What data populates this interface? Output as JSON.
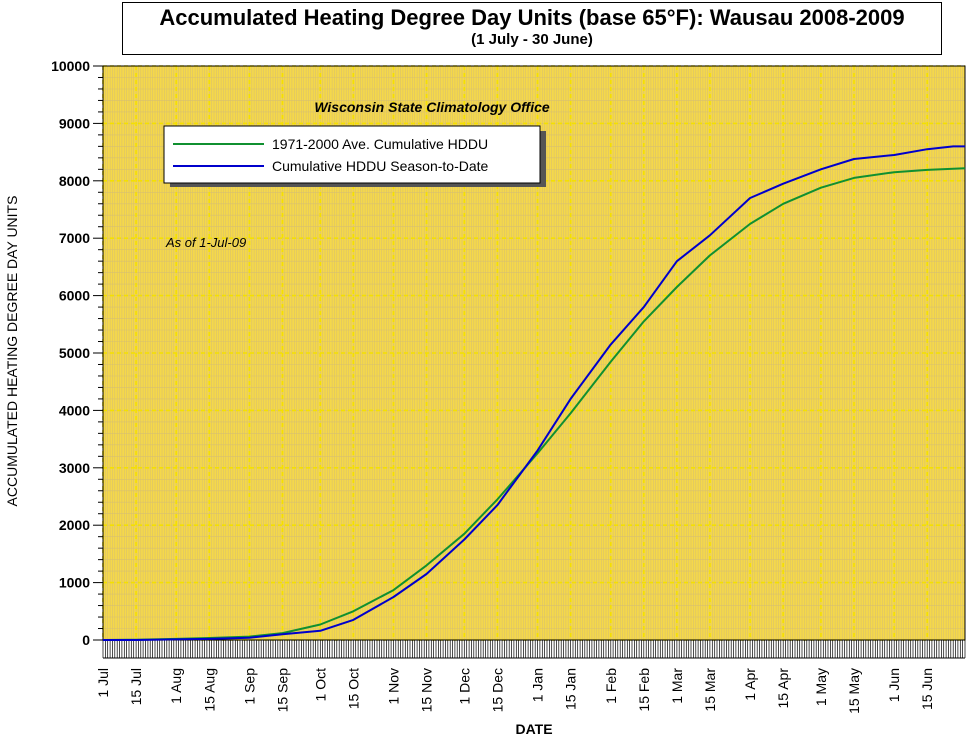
{
  "title": "Accumulated Heating Degree Day Units (base 65°F): Wausau 2008-2009",
  "subtitle": "(1 July - 30 June)",
  "annotation_office": "Wisconsin State Climatology Office",
  "annotation_asof": "As of 1-Jul-09",
  "chart_data": {
    "type": "line",
    "title": "Accumulated Heating Degree Day Units (base 65°F): Wausau 2008-2009",
    "subtitle": "(1 July - 30 June)",
    "xlabel": "DATE",
    "ylabel": "ACCUMULATED HEATING DEGREE DAY UNITS",
    "ylim": [
      0,
      10000
    ],
    "yticks": [
      0,
      1000,
      2000,
      3000,
      4000,
      5000,
      6000,
      7000,
      8000,
      9000,
      10000
    ],
    "xlim_days": [
      0,
      365
    ],
    "xticks": [
      {
        "label": "1 Jul",
        "day": 0
      },
      {
        "label": "15 Jul",
        "day": 14
      },
      {
        "label": "1 Aug",
        "day": 31
      },
      {
        "label": "15 Aug",
        "day": 45
      },
      {
        "label": "1 Sep",
        "day": 62
      },
      {
        "label": "15 Sep",
        "day": 76
      },
      {
        "label": "1 Oct",
        "day": 92
      },
      {
        "label": "15 Oct",
        "day": 106
      },
      {
        "label": "1 Nov",
        "day": 123
      },
      {
        "label": "15 Nov",
        "day": 137
      },
      {
        "label": "1 Dec",
        "day": 153
      },
      {
        "label": "15 Dec",
        "day": 167
      },
      {
        "label": "1 Jan",
        "day": 184
      },
      {
        "label": "15 Jan",
        "day": 198
      },
      {
        "label": "1 Feb",
        "day": 215
      },
      {
        "label": "15 Feb",
        "day": 229
      },
      {
        "label": "1 Mar",
        "day": 243
      },
      {
        "label": "15 Mar",
        "day": 257
      },
      {
        "label": "1 Apr",
        "day": 274
      },
      {
        "label": "15 Apr",
        "day": 288
      },
      {
        "label": "1 May",
        "day": 304
      },
      {
        "label": "15 May",
        "day": 318
      },
      {
        "label": "1 Jun",
        "day": 335
      },
      {
        "label": "15 Jun",
        "day": 349
      }
    ],
    "grid": true,
    "legend_position": "top-left",
    "series": [
      {
        "name": "1971-2000 Ave. Cumulative HDDU",
        "color": "#109030",
        "x": [
          0,
          14,
          31,
          45,
          62,
          76,
          92,
          106,
          123,
          137,
          153,
          167,
          184,
          198,
          215,
          229,
          243,
          257,
          274,
          288,
          304,
          318,
          335,
          349,
          365
        ],
        "y": [
          0,
          5,
          20,
          35,
          60,
          120,
          270,
          500,
          870,
          1300,
          1850,
          2450,
          3250,
          3950,
          4850,
          5550,
          6150,
          6700,
          7250,
          7600,
          7880,
          8050,
          8150,
          8190,
          8220
        ]
      },
      {
        "name": "Cumulative HDDU Season-to-Date",
        "color": "#0000cc",
        "x": [
          0,
          14,
          31,
          45,
          62,
          76,
          92,
          106,
          123,
          137,
          153,
          167,
          184,
          198,
          215,
          229,
          243,
          257,
          274,
          288,
          304,
          318,
          335,
          349,
          360,
          365
        ],
        "y": [
          0,
          0,
          10,
          20,
          40,
          100,
          160,
          350,
          750,
          1150,
          1750,
          2350,
          3300,
          4200,
          5150,
          5800,
          6600,
          7050,
          7700,
          7950,
          8200,
          8380,
          8450,
          8550,
          8600,
          8600
        ]
      }
    ]
  }
}
